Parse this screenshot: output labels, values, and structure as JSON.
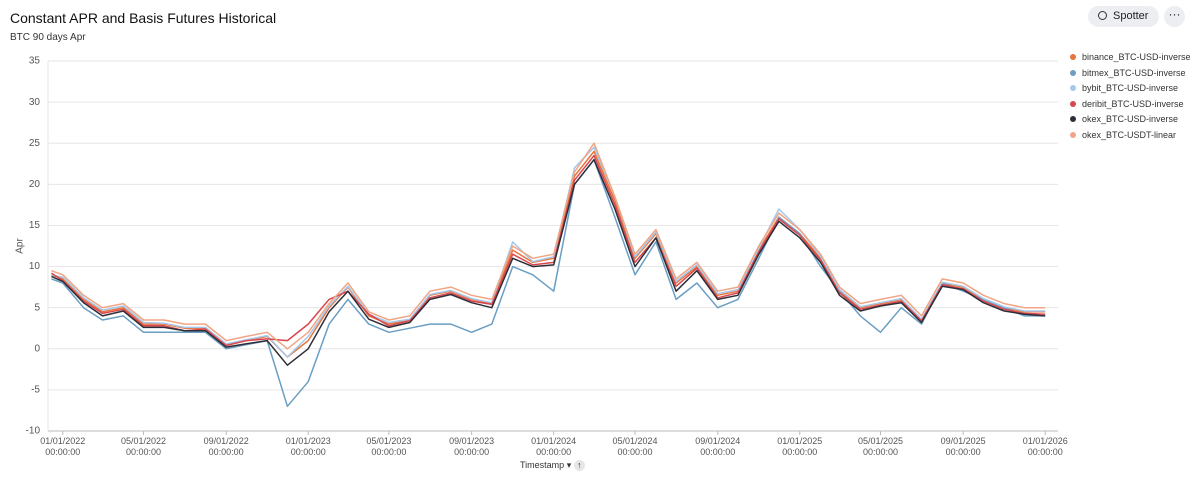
{
  "header": {
    "title": "Constant APR and Basis Futures Historical",
    "subtitle": "BTC 90 days Apr",
    "button": "Spotter"
  },
  "chart_data": {
    "type": "line",
    "xlabel": "Timestamp",
    "ylabel": "Apr",
    "x": [
      "2021-12-15",
      "2022-01-01",
      "2022-02-01",
      "2022-03-01",
      "2022-04-01",
      "2022-05-01",
      "2022-06-01",
      "2022-07-01",
      "2022-08-01",
      "2022-09-01",
      "2022-10-01",
      "2022-11-01",
      "2022-12-01",
      "2023-01-01",
      "2023-02-01",
      "2023-03-01",
      "2023-04-01",
      "2023-05-01",
      "2023-06-01",
      "2023-07-01",
      "2023-08-01",
      "2023-09-01",
      "2023-10-01",
      "2023-11-01",
      "2023-12-01",
      "2024-01-01",
      "2024-02-01",
      "2024-03-01",
      "2024-04-01",
      "2024-05-01",
      "2024-06-01",
      "2024-07-01",
      "2024-08-01",
      "2024-09-01",
      "2024-10-01",
      "2024-11-01",
      "2024-12-01",
      "2025-01-01",
      "2025-02-01",
      "2025-03-01",
      "2025-04-01",
      "2025-05-01",
      "2025-06-01",
      "2025-07-01",
      "2025-08-01",
      "2025-09-01",
      "2025-10-01",
      "2025-11-01",
      "2025-12-01",
      "2026-01-01"
    ],
    "series": [
      {
        "name": "binance_BTC-USD-inverse",
        "color": "#e8743b",
        "values": [
          9,
          8.5,
          6,
          4.5,
          5,
          3,
          3,
          2.5,
          2.5,
          0.5,
          1,
          1.5,
          -1,
          1,
          5,
          7.5,
          4,
          3,
          3.5,
          6.5,
          7,
          6,
          5.5,
          12,
          10.5,
          11,
          21,
          24,
          18,
          11,
          14,
          8,
          10,
          6.5,
          7,
          12,
          16,
          14,
          11,
          7,
          5,
          5.5,
          6,
          3.5,
          8,
          7.5,
          6,
          5,
          4.5,
          4.5
        ]
      },
      {
        "name": "bitmex_BTC-USD-inverse",
        "color": "#6a9ec3",
        "values": [
          8.5,
          8,
          5,
          3.5,
          4,
          2,
          2,
          2,
          2,
          0,
          0.5,
          1,
          -7,
          -4,
          3,
          6,
          3,
          2,
          2.5,
          3,
          3,
          2,
          3,
          10,
          9,
          7,
          20,
          23,
          16,
          9,
          13,
          6,
          8,
          5,
          6,
          11,
          16,
          14,
          10,
          7,
          4,
          2,
          5,
          3,
          8,
          7,
          6,
          5,
          4,
          4
        ]
      },
      {
        "name": "bybit_BTC-USD-inverse",
        "color": "#a6c8ec",
        "values": [
          9,
          8.7,
          6.2,
          4.7,
          5.2,
          3.2,
          3.1,
          2.6,
          2.6,
          0.6,
          1.1,
          1.6,
          -1,
          1.5,
          5.2,
          7.6,
          4.2,
          3.2,
          3.6,
          6.6,
          7.1,
          6.1,
          5.6,
          13,
          10.6,
          11.2,
          22,
          24.5,
          18.5,
          11.2,
          14.2,
          8.2,
          10.2,
          6.7,
          7.2,
          12.2,
          17,
          14.5,
          11.2,
          7.2,
          5.1,
          5.6,
          6.1,
          3.6,
          8.1,
          7.6,
          6.1,
          5.1,
          4.6,
          4.6
        ]
      },
      {
        "name": "deribit_BTC-USD-inverse",
        "color": "#d9474e",
        "values": [
          9.2,
          8.3,
          5.8,
          4.3,
          4.8,
          2.8,
          2.8,
          2.2,
          2.4,
          0.4,
          1,
          1.2,
          1,
          3,
          6,
          7,
          4.2,
          2.8,
          3.4,
          6.2,
          6.8,
          5.8,
          5.4,
          11.5,
          10.2,
          10.5,
          20.5,
          23.5,
          17.5,
          10.5,
          13.5,
          7.6,
          9.8,
          6.2,
          6.8,
          11.8,
          15.8,
          13.8,
          10.8,
          6.8,
          4.8,
          5.3,
          5.8,
          3.4,
          7.8,
          7.3,
          5.8,
          4.8,
          4.3,
          4.2
        ]
      },
      {
        "name": "okex_BTC-USD-inverse",
        "color": "#2e2e38",
        "values": [
          8.8,
          8.2,
          5.6,
          4,
          4.6,
          2.6,
          2.6,
          2.2,
          2.2,
          0.2,
          0.6,
          1,
          -2,
          0,
          4.5,
          7,
          3.6,
          2.6,
          3.2,
          6,
          6.6,
          5.6,
          5,
          11,
          10,
          10.2,
          20,
          23,
          17,
          10,
          13.5,
          7,
          9.5,
          6,
          6.5,
          11.5,
          15.5,
          13.5,
          10.5,
          6.5,
          4.6,
          5.2,
          5.6,
          3.2,
          7.6,
          7.2,
          5.6,
          4.6,
          4.2,
          4
        ]
      },
      {
        "name": "okex_BTC-USDT-linear",
        "color": "#f0a584",
        "values": [
          9.5,
          9,
          6.5,
          5,
          5.5,
          3.5,
          3.5,
          3,
          3,
          1,
          1.5,
          2,
          0,
          2,
          5.5,
          8,
          4.5,
          3.5,
          4,
          7,
          7.5,
          6.5,
          6,
          12.5,
          11,
          11.5,
          21.5,
          25,
          18.5,
          11.5,
          14.5,
          8.5,
          10.5,
          7,
          7.5,
          12.5,
          16.5,
          14.5,
          11.5,
          7.5,
          5.5,
          6,
          6.5,
          4,
          8.5,
          8,
          6.5,
          5.5,
          5,
          5
        ]
      }
    ],
    "xlim": [
      "2021-12-10",
      "2026-01-20"
    ],
    "xticks": [
      {
        "value": "2022-01-01",
        "label": "01/01/2022 00:00:00"
      },
      {
        "value": "2022-05-01",
        "label": "05/01/2022 00:00:00"
      },
      {
        "value": "2022-09-01",
        "label": "09/01/2022 00:00:00"
      },
      {
        "value": "2023-01-01",
        "label": "01/01/2023 00:00:00"
      },
      {
        "value": "2023-05-01",
        "label": "05/01/2023 00:00:00"
      },
      {
        "value": "2023-09-01",
        "label": "09/01/2023 00:00:00"
      },
      {
        "value": "2024-01-01",
        "label": "01/01/2024 00:00:00"
      },
      {
        "value": "2024-05-01",
        "label": "05/01/2024 00:00:00"
      },
      {
        "value": "2024-09-01",
        "label": "09/01/2024 00:00:00"
      },
      {
        "value": "2025-01-01",
        "label": "01/01/2025 00:00:00"
      },
      {
        "value": "2025-05-01",
        "label": "05/01/2025 00:00:00"
      },
      {
        "value": "2025-09-01",
        "label": "09/01/2025 00:00:00"
      },
      {
        "value": "2026-01-01",
        "label": "01/01/2026 00:00:00"
      }
    ],
    "ylim": [
      -10,
      35
    ],
    "yticks": [
      -10,
      -5,
      0,
      5,
      10,
      15,
      20,
      25,
      30,
      35
    ],
    "grid": true
  }
}
